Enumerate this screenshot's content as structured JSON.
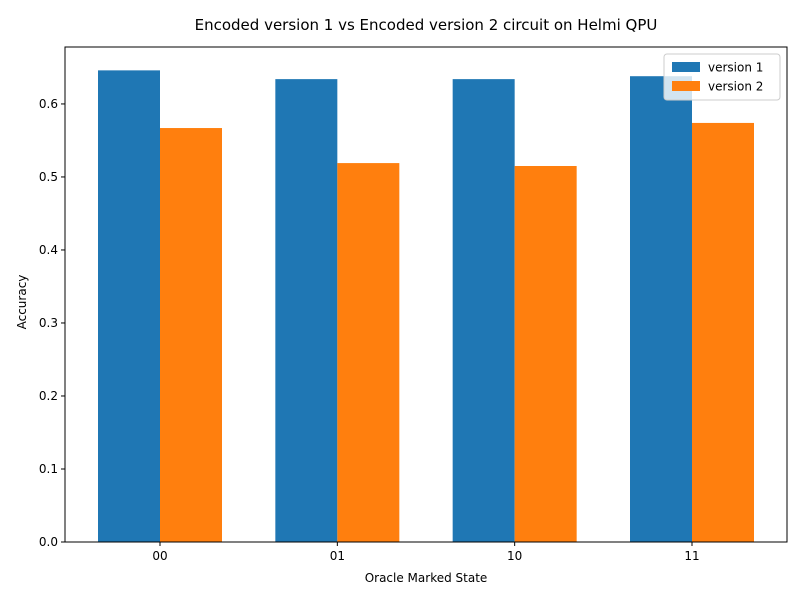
{
  "chart_data": {
    "type": "bar",
    "title": "Encoded version 1 vs Encoded version 2 circuit on Helmi QPU",
    "xlabel": "Oracle Marked State",
    "ylabel": "Accuracy",
    "categories": [
      "00",
      "01",
      "10",
      "11"
    ],
    "series": [
      {
        "name": "version 1",
        "values": [
          0.646,
          0.634,
          0.634,
          0.638
        ],
        "color": "#1f77b4"
      },
      {
        "name": "version 2",
        "values": [
          0.567,
          0.519,
          0.515,
          0.574
        ],
        "color": "#ff7f0e"
      }
    ],
    "ylim": [
      0,
      0.678
    ],
    "yticks": [
      0.0,
      0.1,
      0.2,
      0.3,
      0.4,
      0.5,
      0.6
    ],
    "ytick_labels": [
      "0.0",
      "0.1",
      "0.2",
      "0.3",
      "0.4",
      "0.5",
      "0.6"
    ],
    "grid": false,
    "legend_position": "top-right"
  }
}
